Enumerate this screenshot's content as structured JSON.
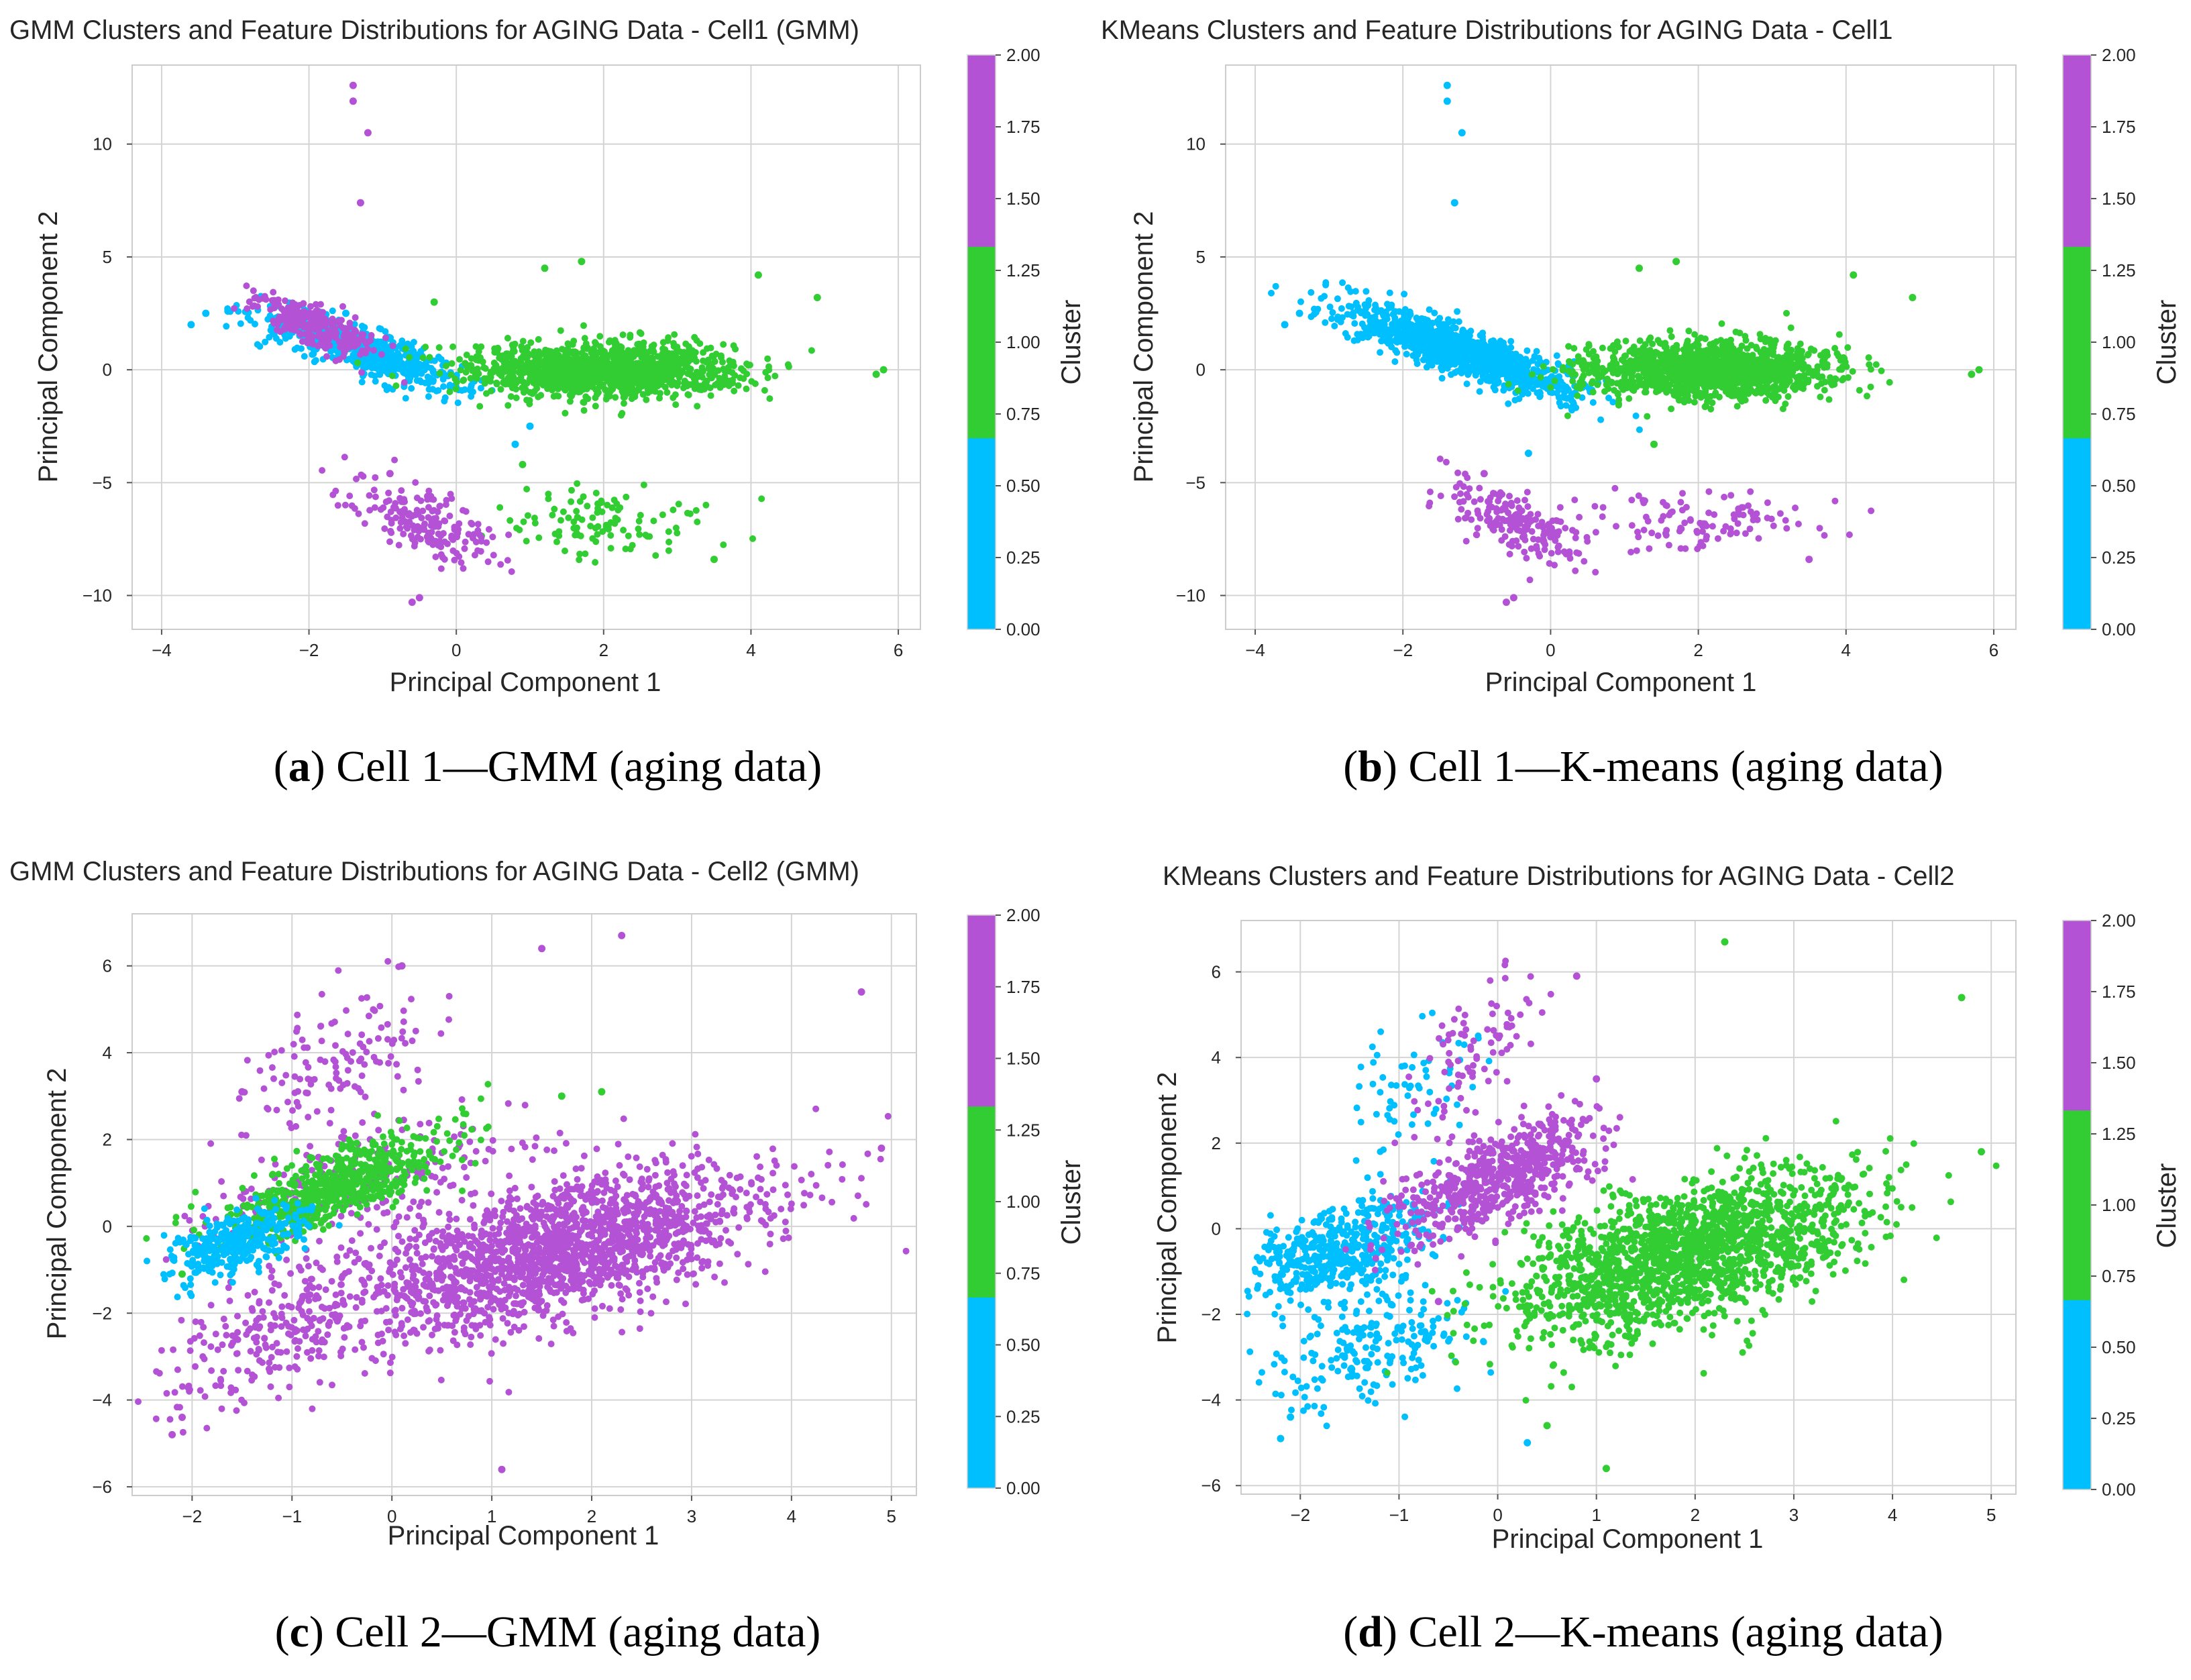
{
  "colors": {
    "cluster0": "#00bfff",
    "cluster1": "#32cd32",
    "cluster2": "#b452d6",
    "grid": "#d4d4d4",
    "frame": "#cccccc"
  },
  "chart_data": [
    {
      "type": "scatter",
      "panel_id": "a",
      "title": "GMM Clusters and Feature Distributions for AGING Data - Cell1 (GMM)",
      "xlabel": "Principal Component 1",
      "ylabel": "Principal Component 2",
      "xlim": [
        -4.4,
        6.3
      ],
      "ylim": [
        -11.5,
        13.5
      ],
      "xticks": [
        -4,
        -2,
        0,
        2,
        4,
        6
      ],
      "yticks": [
        -10,
        -5,
        0,
        5,
        10
      ],
      "colorbar": {
        "label": "Cluster",
        "range": [
          0,
          2
        ],
        "ticks": [
          "0.00",
          "0.25",
          "0.50",
          "0.75",
          "1.00",
          "1.25",
          "1.50",
          "1.75",
          "2.00"
        ],
        "bands": [
          "#00bfff",
          "#32cd32",
          "#b452d6"
        ]
      },
      "caption": {
        "letter": "a",
        "text": "Cell 1—GMM (aging data)"
      },
      "clusters": [
        {
          "cluster": 0,
          "regions": [
            {
              "cx": -1.3,
              "cy": 0.9,
              "sx": 0.7,
              "sy": 0.9,
              "rho": -0.85,
              "n": 650
            }
          ],
          "points": [
            [
              -3.6,
              2.0
            ],
            [
              -3.4,
              2.5
            ],
            [
              -3.1,
              2.6
            ],
            [
              -1.5,
              2.5
            ],
            [
              0.8,
              -3.3
            ],
            [
              1.0,
              -2.5
            ]
          ]
        },
        {
          "cluster": 1,
          "regions": [
            {
              "cx": 2.0,
              "cy": 0.0,
              "sx": 0.9,
              "sy": 0.6,
              "rho": 0.0,
              "n": 1300
            },
            {
              "cx": 2.0,
              "cy": -6.7,
              "sx": 0.7,
              "sy": 0.7,
              "rho": 0.0,
              "n": 110
            }
          ],
          "points": [
            [
              5.8,
              0.0
            ],
            [
              5.7,
              -0.2
            ],
            [
              4.9,
              3.2
            ],
            [
              4.1,
              4.2
            ],
            [
              1.7,
              4.8
            ],
            [
              1.2,
              4.5
            ],
            [
              -0.3,
              3.0
            ],
            [
              3.5,
              -8.4
            ],
            [
              0.9,
              -4.2
            ]
          ]
        },
        {
          "cluster": 2,
          "regions": [
            {
              "cx": -1.9,
              "cy": 1.9,
              "sx": 0.4,
              "sy": 0.7,
              "rho": -0.75,
              "n": 250
            },
            {
              "cx": -0.5,
              "cy": -6.7,
              "sx": 0.5,
              "sy": 1.0,
              "rho": -0.7,
              "n": 190
            }
          ],
          "points": [
            [
              -1.4,
              12.6
            ],
            [
              -1.4,
              11.9
            ],
            [
              -1.2,
              10.5
            ],
            [
              -1.3,
              7.4
            ],
            [
              -0.5,
              -10.1
            ],
            [
              -0.6,
              -10.3
            ],
            [
              -0.9,
              -4.6
            ]
          ]
        }
      ]
    },
    {
      "type": "scatter",
      "panel_id": "b",
      "title": "KMeans Clusters and Feature Distributions for AGING Data - Cell1",
      "xlabel": "Principal Component 1",
      "ylabel": "Principal Component 2",
      "xlim": [
        -4.4,
        6.3
      ],
      "ylim": [
        -11.5,
        13.5
      ],
      "xticks": [
        -4,
        -2,
        0,
        2,
        4,
        6
      ],
      "yticks": [
        -10,
        -5,
        0,
        5,
        10
      ],
      "colorbar": {
        "label": "Cluster",
        "range": [
          0,
          2
        ],
        "ticks": [
          "0.00",
          "0.25",
          "0.50",
          "0.75",
          "1.00",
          "1.25",
          "1.50",
          "1.75",
          "2.00"
        ],
        "bands": [
          "#00bfff",
          "#32cd32",
          "#b452d6"
        ]
      },
      "caption": {
        "letter": "b",
        "text": "Cell 1—K-means (aging data)"
      },
      "clusters": [
        {
          "cluster": 0,
          "regions": [
            {
              "cx": -1.2,
              "cy": 0.8,
              "sx": 0.75,
              "sy": 1.0,
              "rho": -0.85,
              "n": 1100
            }
          ],
          "points": [
            [
              -3.6,
              2.0
            ],
            [
              -3.4,
              2.5
            ],
            [
              -1.4,
              12.6
            ],
            [
              -1.4,
              11.9
            ],
            [
              -1.2,
              10.5
            ],
            [
              -1.3,
              7.4
            ],
            [
              -0.3,
              -3.7
            ]
          ]
        },
        {
          "cluster": 1,
          "regions": [
            {
              "cx": 2.1,
              "cy": 0.0,
              "sx": 0.85,
              "sy": 0.6,
              "rho": 0.0,
              "n": 1300
            }
          ],
          "points": [
            [
              5.8,
              0.0
            ],
            [
              5.7,
              -0.2
            ],
            [
              4.9,
              3.2
            ],
            [
              4.1,
              4.2
            ],
            [
              1.7,
              4.8
            ],
            [
              1.2,
              4.5
            ],
            [
              1.4,
              -3.3
            ]
          ]
        },
        {
          "cluster": 2,
          "regions": [
            {
              "cx": -0.5,
              "cy": -6.7,
              "sx": 0.5,
              "sy": 1.0,
              "rho": -0.7,
              "n": 190
            },
            {
              "cx": 2.0,
              "cy": -6.7,
              "sx": 0.7,
              "sy": 0.7,
              "rho": 0.0,
              "n": 110
            }
          ],
          "points": [
            [
              -0.5,
              -10.1
            ],
            [
              -0.6,
              -10.3
            ],
            [
              -0.9,
              -4.6
            ],
            [
              3.5,
              -8.4
            ]
          ]
        }
      ]
    },
    {
      "type": "scatter",
      "panel_id": "c",
      "title": "GMM Clusters and Feature Distributions for AGING Data - Cell2 (GMM)",
      "xlabel": "Principal Component 1",
      "ylabel": "Principal Component 2",
      "xlim": [
        -2.6,
        5.25
      ],
      "ylim": [
        -6.2,
        7.2
      ],
      "xticks": [
        -2,
        -1,
        0,
        1,
        2,
        3,
        4,
        5
      ],
      "yticks": [
        -6,
        -4,
        -2,
        0,
        2,
        4,
        6
      ],
      "colorbar": {
        "label": "Cluster",
        "range": [
          0,
          2
        ],
        "ticks": [
          "0.00",
          "0.25",
          "0.50",
          "0.75",
          "1.00",
          "1.25",
          "1.50",
          "1.75",
          "2.00"
        ],
        "bands": [
          "#00bfff",
          "#32cd32",
          "#b452d6"
        ]
      },
      "caption": {
        "letter": "c",
        "text": "Cell 2—GMM (aging data)"
      },
      "clusters": [
        {
          "cluster": 2,
          "regions": [
            {
              "cx": 1.6,
              "cy": -0.6,
              "sx": 1.1,
              "sy": 1.0,
              "rho": 0.6,
              "n": 1800
            },
            {
              "cx": -0.6,
              "cy": 3.6,
              "sx": 0.5,
              "sy": 1.0,
              "rho": 0.5,
              "n": 140
            },
            {
              "cx": -1.3,
              "cy": -2.6,
              "sx": 0.5,
              "sy": 0.8,
              "rho": 0.5,
              "n": 200
            },
            {
              "cx": -0.5,
              "cy": 0.9,
              "sx": 0.8,
              "sy": 0.7,
              "rho": 0.7,
              "n": 220
            }
          ],
          "points": [
            [
              4.9,
              1.8
            ],
            [
              4.7,
              5.4
            ],
            [
              2.3,
              6.7
            ],
            [
              1.5,
              6.4
            ],
            [
              0.1,
              6.0
            ],
            [
              -1.5,
              3.1
            ],
            [
              1.1,
              -5.6
            ],
            [
              -2.2,
              -4.8
            ],
            [
              -2.1,
              -4.4
            ]
          ]
        },
        {
          "cluster": 1,
          "regions": [
            {
              "cx": -0.6,
              "cy": 0.9,
              "sx": 0.6,
              "sy": 0.65,
              "rho": 0.75,
              "n": 650
            }
          ],
          "points": [
            [
              2.1,
              3.1
            ],
            [
              1.7,
              3.0
            ],
            [
              -2.1,
              -1.1
            ]
          ]
        },
        {
          "cluster": 0,
          "regions": [
            {
              "cx": -1.6,
              "cy": -0.4,
              "sx": 0.35,
              "sy": 0.45,
              "rho": 0.6,
              "n": 320
            }
          ],
          "points": []
        }
      ]
    },
    {
      "type": "scatter",
      "panel_id": "d",
      "title": "KMeans Clusters and Feature Distributions for AGING Data - Cell2",
      "xlabel": "Principal Component 1",
      "ylabel": "Principal Component 2",
      "xlim": [
        -2.6,
        5.25
      ],
      "ylim": [
        -6.2,
        7.2
      ],
      "xticks": [
        -2,
        -1,
        0,
        1,
        2,
        3,
        4,
        5
      ],
      "yticks": [
        -6,
        -4,
        -2,
        0,
        2,
        4,
        6
      ],
      "colorbar": {
        "label": "Cluster",
        "range": [
          0,
          2
        ],
        "ticks": [
          "0.00",
          "0.25",
          "0.50",
          "0.75",
          "1.00",
          "1.25",
          "1.50",
          "1.75",
          "2.00"
        ],
        "bands": [
          "#00bfff",
          "#32cd32",
          "#b452d6"
        ]
      },
      "caption": {
        "letter": "d",
        "text": "Cell 2—K-means (aging data)"
      },
      "clusters": [
        {
          "cluster": 0,
          "regions": [
            {
              "cx": -1.6,
              "cy": -0.5,
              "sx": 0.45,
              "sy": 0.6,
              "rho": 0.5,
              "n": 500
            },
            {
              "cx": -1.3,
              "cy": -2.7,
              "sx": 0.5,
              "sy": 0.8,
              "rho": 0.5,
              "n": 200
            },
            {
              "cx": -0.9,
              "cy": 3.2,
              "sx": 0.35,
              "sy": 0.8,
              "rho": 0.5,
              "n": 60
            }
          ],
          "points": [
            [
              -2.2,
              -4.9
            ],
            [
              -2.1,
              -4.4
            ],
            [
              0.3,
              -5.0
            ]
          ]
        },
        {
          "cluster": 2,
          "regions": [
            {
              "cx": 0.0,
              "cy": 1.2,
              "sx": 0.5,
              "sy": 0.7,
              "rho": 0.6,
              "n": 600
            },
            {
              "cx": -0.2,
              "cy": 4.3,
              "sx": 0.3,
              "sy": 0.8,
              "rho": 0.6,
              "n": 80
            }
          ],
          "points": [
            [
              1.0,
              3.5
            ],
            [
              0.8,
              5.9
            ],
            [
              -0.6,
              -1.7
            ]
          ]
        },
        {
          "cluster": 1,
          "regions": [
            {
              "cx": 1.9,
              "cy": -0.6,
              "sx": 0.9,
              "sy": 0.95,
              "rho": 0.55,
              "n": 1700
            }
          ],
          "points": [
            [
              4.9,
              1.8
            ],
            [
              4.7,
              5.4
            ],
            [
              2.3,
              6.7
            ],
            [
              1.1,
              -5.6
            ],
            [
              0.5,
              -4.6
            ]
          ]
        }
      ]
    }
  ]
}
